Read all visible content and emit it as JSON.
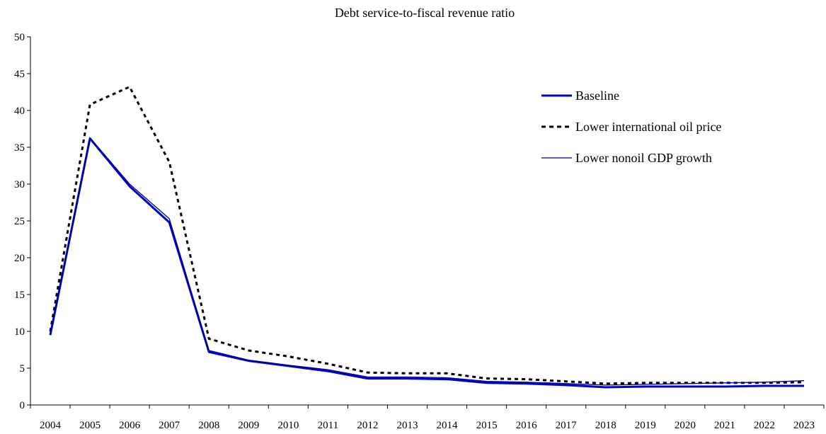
{
  "chart_data": {
    "type": "line",
    "title": "Debt service-to-fiscal revenue ratio",
    "xlabel": "",
    "ylabel": "",
    "x": [
      "2004",
      "2005",
      "2006",
      "2007",
      "2008",
      "2009",
      "2010",
      "2011",
      "2012",
      "2013",
      "2014",
      "2015",
      "2016",
      "2017",
      "2018",
      "2019",
      "2020",
      "2021",
      "2022",
      "2023"
    ],
    "ylim": [
      0,
      50
    ],
    "yticks": [
      0,
      5,
      10,
      15,
      20,
      25,
      30,
      35,
      40,
      45,
      50
    ],
    "grid": false,
    "legend_position": "top-right",
    "series": [
      {
        "name": "Baseline",
        "color": "#0000cc",
        "style": "solid-thick",
        "values": [
          9.5,
          36.2,
          29.7,
          24.8,
          7.2,
          6.0,
          5.3,
          4.6,
          3.6,
          3.6,
          3.5,
          3.0,
          2.9,
          2.7,
          2.4,
          2.5,
          2.5,
          2.5,
          2.6,
          2.6
        ]
      },
      {
        "name": "Lower international oil price",
        "color": "#000000",
        "style": "dashed-thick",
        "values": [
          10.0,
          40.8,
          43.2,
          33.0,
          9.0,
          7.4,
          6.6,
          5.6,
          4.4,
          4.3,
          4.3,
          3.6,
          3.5,
          3.2,
          2.9,
          3.0,
          3.0,
          3.0,
          3.0,
          3.1
        ]
      },
      {
        "name": "Lower nonoil GDP growth",
        "color": "#000080",
        "style": "solid-thin",
        "values": [
          9.5,
          36.3,
          30.0,
          25.3,
          7.4,
          6.1,
          5.4,
          4.8,
          3.8,
          3.8,
          3.7,
          3.2,
          3.1,
          2.9,
          2.7,
          2.8,
          2.9,
          3.0,
          3.1,
          3.3
        ]
      }
    ]
  }
}
